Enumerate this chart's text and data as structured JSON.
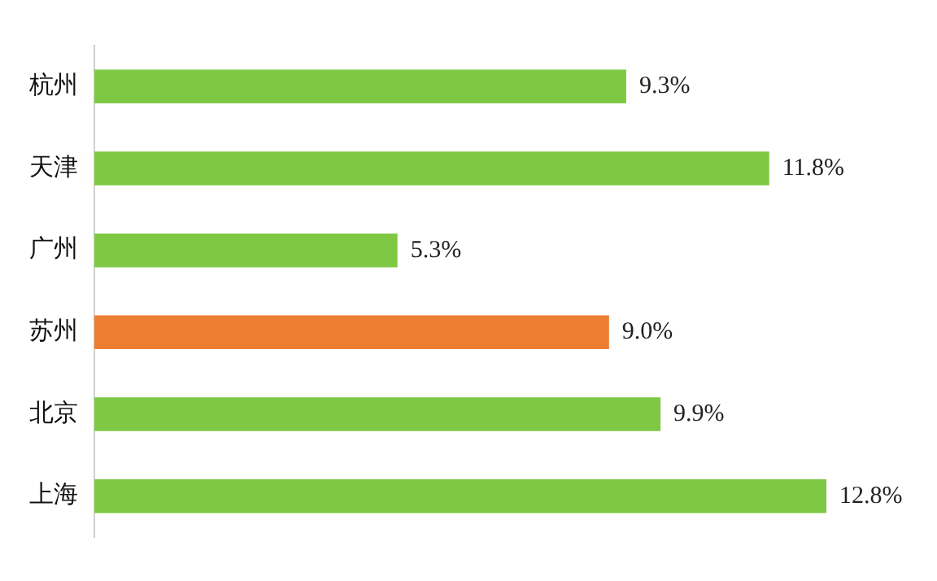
{
  "chart_data": {
    "type": "bar",
    "orientation": "horizontal",
    "categories": [
      "杭州",
      "天津",
      "广州",
      "苏州",
      "北京",
      "上海"
    ],
    "values": [
      9.3,
      11.8,
      5.3,
      9.0,
      9.9,
      12.8
    ],
    "colors": [
      "#7ec843",
      "#7ec843",
      "#7ec843",
      "#ed7d31",
      "#7ec843",
      "#7ec843"
    ],
    "value_labels": [
      "9.3%",
      "11.8%",
      "5.3%",
      "9.0%",
      "9.9%",
      "12.8%"
    ],
    "tick_labels": "y"
  }
}
